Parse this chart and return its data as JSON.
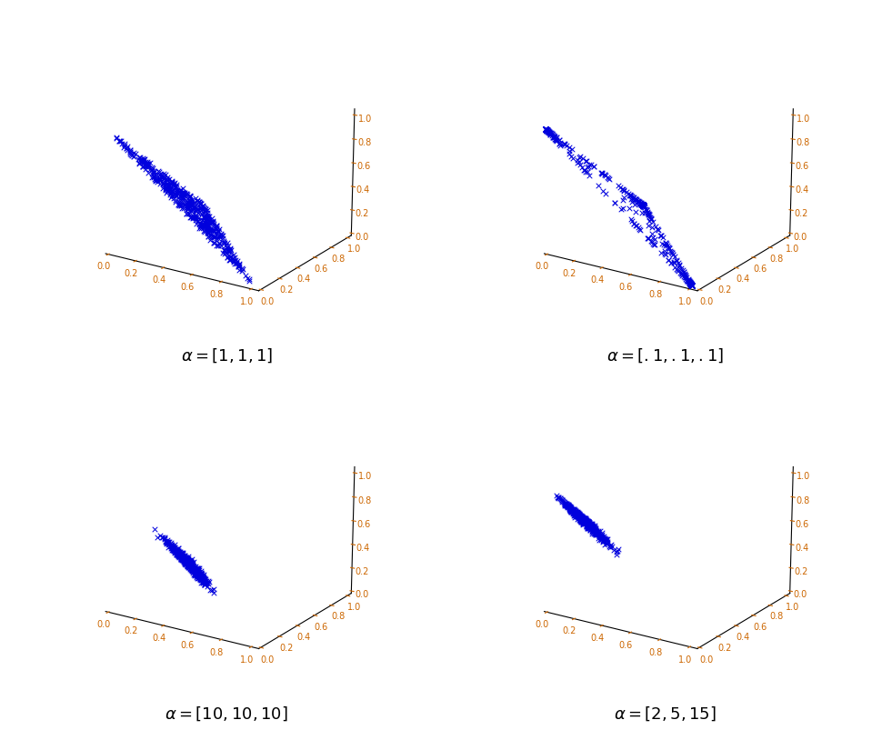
{
  "panels": [
    {
      "alpha": [
        1,
        1,
        1
      ],
      "label": "$\\alpha = [1, 1, 1]$",
      "n_samples": 500,
      "seed": 42
    },
    {
      "alpha": [
        0.1,
        0.1,
        0.1
      ],
      "label": "$\\alpha = [.1, .1, .1]$",
      "n_samples": 500,
      "seed": 43
    },
    {
      "alpha": [
        10,
        10,
        10
      ],
      "label": "$\\alpha = [10, 10, 10]$",
      "n_samples": 500,
      "seed": 44
    },
    {
      "alpha": [
        2,
        5,
        15
      ],
      "label": "$\\alpha = [2, 5, 15]$",
      "n_samples": 500,
      "seed": 45
    }
  ],
  "marker": "x",
  "marker_size": 16,
  "marker_lw": 0.7,
  "marker_color": "#0000dd",
  "tick_color": "#cc6600",
  "axis_line_color": "#000000",
  "background_color": "#ffffff",
  "tick_values": [
    0,
    0.2,
    0.4,
    0.6,
    0.8,
    1.0
  ],
  "axis_lim": [
    -0.02,
    1.05
  ],
  "label_fontsize": 13,
  "tick_fontsize": 7,
  "elev": 18,
  "azim": -57
}
